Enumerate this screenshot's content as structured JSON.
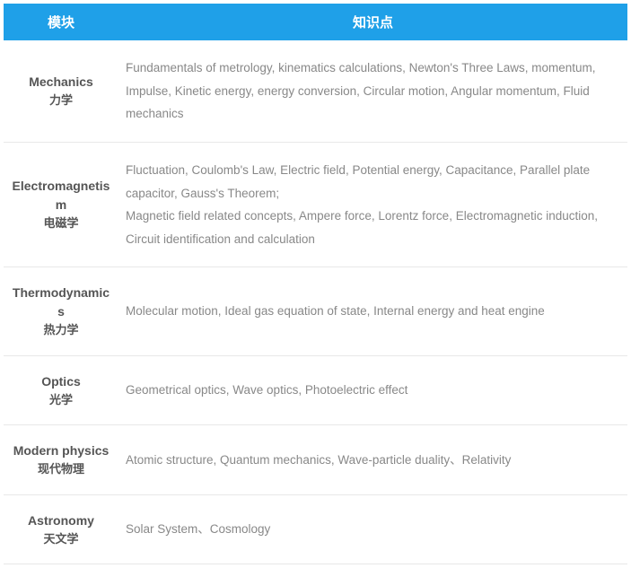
{
  "header": {
    "module": "模块",
    "content": "知识点"
  },
  "colors": {
    "header_bg": "#1fa0e8",
    "header_text": "#ffffff",
    "module_text": "#555555",
    "content_text": "#888888",
    "row_border": "#e8e8e8"
  },
  "rows": [
    {
      "module_en": "Mechanics",
      "module_cn": "力学",
      "content_1": "Fundamentals of metrology, kinematics calculations, Newton's Three Laws, momentum, Impulse, Kinetic energy, energy conversion, Circular motion, Angular momentum, Fluid mechanics",
      "content_2": ""
    },
    {
      "module_en": "Electromagnetism",
      "module_cn": "电磁学",
      "content_1": "Fluctuation, Coulomb's Law, Electric  field, Potential energy, Capacitance, Parallel plate capacitor, Gauss's  Theorem;",
      "content_2": "Magnetic field related concepts, Ampere force, Lorentz force, Electromagnetic induction, Circuit identification and  calculation"
    },
    {
      "module_en": "Thermodynamics",
      "module_cn": "热力学",
      "content_1": "Molecular motion, Ideal gas equation  of state, Internal energy and heat engine",
      "content_2": ""
    },
    {
      "module_en": "Optics",
      "module_cn": "光学",
      "content_1": "Geometrical optics, Wave optics, Photoelectric  effect",
      "content_2": ""
    },
    {
      "module_en": "Modern physics",
      "module_cn": "现代物理",
      "content_1": "Atomic structure, Quantum mechanics,  Wave-particle duality、Relativity",
      "content_2": ""
    },
    {
      "module_en": "Astronomy",
      "module_cn": "天文学",
      "content_1": "Solar System、Cosmology",
      "content_2": ""
    }
  ]
}
